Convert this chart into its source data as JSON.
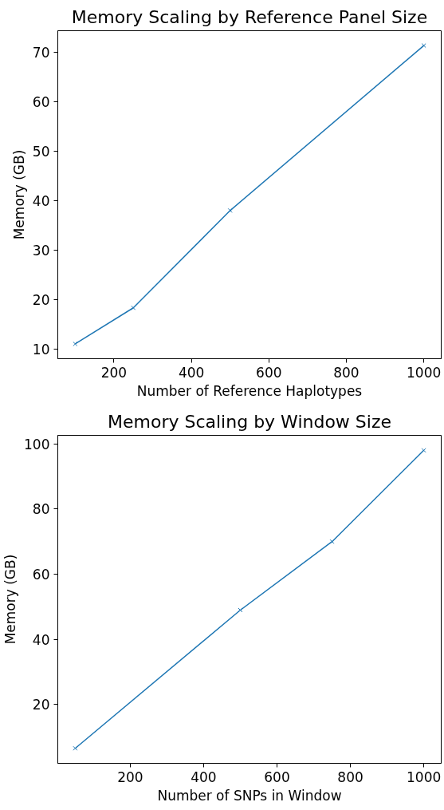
{
  "chart_data": [
    {
      "type": "line",
      "title": "Memory Scaling by Reference Panel Size",
      "xlabel": "Number of Reference Haplotypes",
      "ylabel": "Memory (GB)",
      "x": [
        100,
        250,
        500,
        1000
      ],
      "series": [
        {
          "color": "#1f77b4",
          "values": [
            11.0,
            18.3,
            38.0,
            71.4
          ]
        }
      ],
      "xlim": [
        55,
        1045
      ],
      "ylim": [
        8.0,
        74.4
      ],
      "xticks": [
        200,
        400,
        600,
        800,
        1000
      ],
      "yticks": [
        10,
        20,
        30,
        40,
        50,
        60,
        70
      ],
      "grid": false,
      "marker": "cross",
      "line_style": "solid"
    },
    {
      "type": "line",
      "title": "Memory Scaling by Window Size",
      "xlabel": "Number of SNPs in Window",
      "ylabel": "Memory (GB)",
      "x": [
        50,
        500,
        750,
        1000
      ],
      "series": [
        {
          "color": "#1f77b4",
          "values": [
            6.6,
            49,
            70,
            98
          ]
        }
      ],
      "xlim": [
        2.5,
        1047.5
      ],
      "ylim": [
        2.0,
        102.6
      ],
      "xticks": [
        200,
        400,
        600,
        800,
        1000
      ],
      "yticks": [
        20,
        40,
        60,
        80,
        100
      ],
      "grid": false,
      "marker": "cross",
      "line_style": "solid"
    }
  ]
}
